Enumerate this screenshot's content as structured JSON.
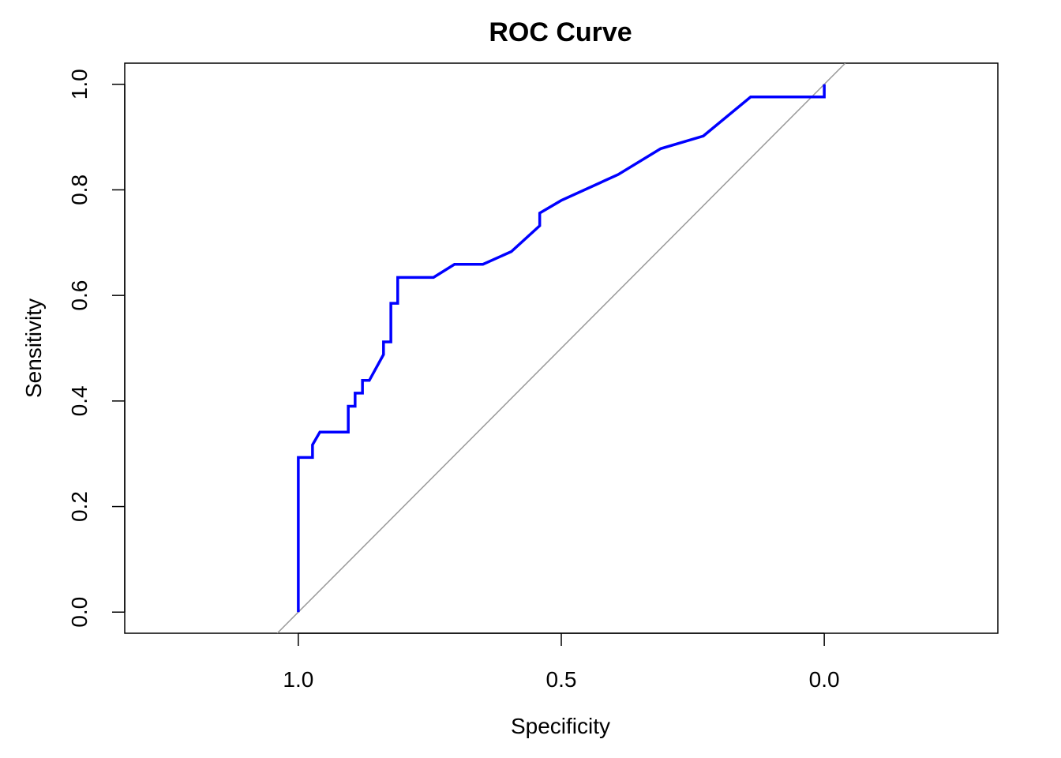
{
  "chart_data": {
    "type": "line",
    "title": "ROC Curve",
    "xlabel": "Specificity",
    "ylabel": "Sensitivity",
    "x_reversed": true,
    "xlim": [
      1.33,
      -0.33
    ],
    "ylim": [
      -0.04,
      1.04
    ],
    "x_ticks": [
      1.0,
      0.5,
      0.0
    ],
    "x_tick_labels": [
      "1.0",
      "0.5",
      "0.0"
    ],
    "y_ticks": [
      0.0,
      0.2,
      0.4,
      0.6,
      0.8,
      1.0
    ],
    "y_tick_labels": [
      "0.0",
      "0.2",
      "0.4",
      "0.6",
      "0.8",
      "1.0"
    ],
    "grid": false,
    "reference_line": {
      "x": [
        1.04,
        -0.04
      ],
      "y": [
        -0.04,
        1.04
      ],
      "color": "#999999"
    },
    "series": [
      {
        "color": "#0000ff",
        "x": [
          1.0,
          1.0,
          0.973,
          0.973,
          0.959,
          0.905,
          0.905,
          0.892,
          0.892,
          0.878,
          0.878,
          0.865,
          0.838,
          0.838,
          0.824,
          0.824,
          0.811,
          0.811,
          0.743,
          0.703,
          0.649,
          0.595,
          0.541,
          0.541,
          0.5,
          0.392,
          0.311,
          0.23,
          0.14,
          0.0,
          0.0
        ],
        "y": [
          0.0,
          0.293,
          0.293,
          0.317,
          0.341,
          0.341,
          0.39,
          0.39,
          0.415,
          0.415,
          0.439,
          0.439,
          0.488,
          0.512,
          0.512,
          0.585,
          0.585,
          0.634,
          0.634,
          0.659,
          0.659,
          0.683,
          0.732,
          0.756,
          0.78,
          0.829,
          0.878,
          0.902,
          0.976,
          0.976,
          1.0
        ]
      }
    ]
  }
}
